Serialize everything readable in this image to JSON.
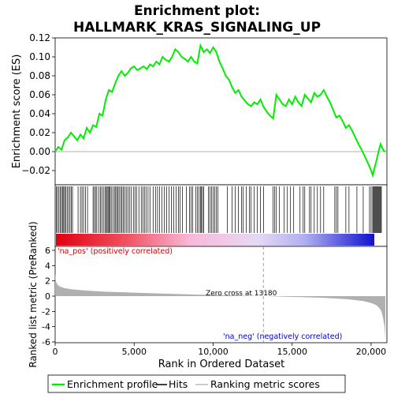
{
  "chart_data": {
    "type": "line",
    "title_line1": "Enrichment plot:",
    "title_line2": "HALLMARK_KRAS_SIGNALING_UP",
    "es_panel": {
      "ylabel": "Enrichment score (ES)",
      "ylim": [
        -0.035,
        0.12
      ],
      "yticks": [
        -0.02,
        0.0,
        0.02,
        0.04,
        0.06,
        0.08,
        0.1,
        0.12
      ],
      "ytick_labels": [
        "−0.02",
        "0.00",
        "0.02",
        "0.04",
        "0.06",
        "0.08",
        "0.10",
        "0.12"
      ],
      "series_name": "Enrichment profile",
      "color": "#00ee00",
      "x": [
        0,
        200,
        400,
        600,
        800,
        1000,
        1200,
        1400,
        1600,
        1800,
        2000,
        2200,
        2400,
        2600,
        2800,
        3000,
        3200,
        3400,
        3600,
        3800,
        4000,
        4200,
        4400,
        4600,
        4800,
        5000,
        5200,
        5400,
        5600,
        5800,
        6000,
        6200,
        6400,
        6600,
        6800,
        7000,
        7200,
        7400,
        7600,
        7800,
        8000,
        8200,
        8400,
        8600,
        8800,
        9000,
        9200,
        9400,
        9600,
        9800,
        10000,
        10200,
        10400,
        10600,
        10800,
        11000,
        11200,
        11400,
        11600,
        11800,
        12000,
        12200,
        12400,
        12600,
        12800,
        13000,
        13200,
        13400,
        13600,
        13800,
        14000,
        14200,
        14400,
        14600,
        14800,
        15000,
        15200,
        15400,
        15600,
        15800,
        16000,
        16200,
        16400,
        16600,
        16800,
        17000,
        17200,
        17400,
        17600,
        17800,
        18000,
        18200,
        18400,
        18600,
        18800,
        19000,
        19200,
        19400,
        19600,
        19800,
        20000,
        20100,
        20200,
        20300,
        20400,
        20500,
        20600,
        20700,
        20800,
        20900
      ],
      "y": [
        0.0,
        0.005,
        0.002,
        0.012,
        0.015,
        0.02,
        0.016,
        0.012,
        0.018,
        0.014,
        0.025,
        0.02,
        0.028,
        0.026,
        0.04,
        0.038,
        0.055,
        0.065,
        0.063,
        0.072,
        0.08,
        0.085,
        0.08,
        0.083,
        0.088,
        0.09,
        0.086,
        0.088,
        0.09,
        0.087,
        0.092,
        0.09,
        0.095,
        0.092,
        0.1,
        0.097,
        0.095,
        0.1,
        0.108,
        0.105,
        0.1,
        0.098,
        0.095,
        0.1,
        0.095,
        0.093,
        0.112,
        0.105,
        0.108,
        0.104,
        0.11,
        0.105,
        0.095,
        0.088,
        0.08,
        0.076,
        0.068,
        0.062,
        0.065,
        0.058,
        0.054,
        0.05,
        0.048,
        0.052,
        0.05,
        0.055,
        0.047,
        0.042,
        0.038,
        0.035,
        0.06,
        0.055,
        0.05,
        0.048,
        0.055,
        0.05,
        0.058,
        0.052,
        0.048,
        0.06,
        0.056,
        0.052,
        0.062,
        0.058,
        0.06,
        0.065,
        0.058,
        0.052,
        0.044,
        0.036,
        0.038,
        0.032,
        0.025,
        0.028,
        0.022,
        0.015,
        0.008,
        0.002,
        -0.005,
        -0.012,
        -0.02,
        -0.025,
        -0.018,
        -0.012,
        -0.005,
        0.002,
        0.008,
        0.004,
        0.001,
        0.0
      ],
      "baseline": 0.0
    },
    "hits_panel": {
      "legend_label": "Hits",
      "positions": [
        80,
        150,
        240,
        320,
        400,
        470,
        540,
        600,
        680,
        760,
        850,
        940,
        1020,
        1100,
        1450,
        1600,
        1700,
        1800,
        1920,
        2050,
        2400,
        2480,
        2560,
        2640,
        2760,
        2870,
        2950,
        3050,
        3150,
        3230,
        3290,
        3350,
        3410,
        3480,
        3550,
        3650,
        3750,
        3830,
        3900,
        3980,
        4050,
        4150,
        4230,
        4320,
        4400,
        4500,
        4600,
        4700,
        4820,
        4950,
        5050,
        5150,
        5300,
        5450,
        5550,
        5650,
        5750,
        5880,
        6000,
        6200,
        6350,
        6480,
        6600,
        6750,
        6900,
        7050,
        7200,
        7350,
        7500,
        7650,
        7800,
        7900,
        8050,
        8300,
        8500,
        8600,
        8700,
        8900,
        9000,
        9100,
        9200,
        9260,
        9330,
        9400,
        9700,
        9800,
        9900,
        10000,
        10100,
        10200,
        10300,
        10900,
        11200,
        11400,
        11600,
        11800,
        11900,
        12100,
        12300,
        12400,
        12600,
        12800,
        13000,
        13200,
        13800,
        13900,
        14000,
        14200,
        14500,
        14700,
        14900,
        15100,
        15500,
        15700,
        15800,
        16100,
        16200,
        16400,
        16600,
        16800,
        17000,
        17700,
        17800,
        17900,
        18400,
        18600,
        19100,
        19500,
        19900,
        20000,
        20100,
        20150,
        20200,
        20250,
        20300,
        20350,
        20400,
        20450,
        20500,
        20550,
        20600,
        20650
      ]
    },
    "rank_panel": {
      "xlabel": "Rank in Ordered Dataset",
      "ylabel": "Ranked list metric (PreRanked)",
      "legend_label": "Ranking metric scores",
      "ylim": [
        -6,
        6
      ],
      "yticks": [
        -6,
        -4,
        -2,
        0,
        2,
        4,
        6
      ],
      "ytick_labels": [
        "-6",
        "-4",
        "-2",
        "0",
        "2",
        "4",
        "6"
      ],
      "xlim": [
        0,
        21000
      ],
      "xticks": [
        0,
        5000,
        10000,
        15000,
        20000
      ],
      "xtick_labels": [
        "0",
        "5,000",
        "10,000",
        "15,000",
        "20,000"
      ],
      "zero_cross": 13180,
      "zero_cross_label": "Zero cross at 13180",
      "pos_label": "'na_pos' (positively correlated)",
      "neg_label": "'na_neg' (negatively correlated)",
      "metric_x": [
        0,
        50,
        150,
        300,
        600,
        1000,
        2000,
        3000,
        5000,
        7000,
        9000,
        11000,
        13180,
        15000,
        17000,
        18500,
        19500,
        20000,
        20300,
        20500,
        20650,
        20750,
        20850,
        20900
      ],
      "metric_y": [
        3.0,
        1.9,
        1.5,
        1.25,
        1.05,
        0.9,
        0.72,
        0.6,
        0.45,
        0.32,
        0.2,
        0.1,
        0.0,
        -0.1,
        -0.22,
        -0.4,
        -0.65,
        -0.9,
        -1.15,
        -1.5,
        -2.0,
        -2.8,
        -4.0,
        -5.5
      ]
    },
    "colors": {
      "es_line": "#00ee00",
      "hit": "#000000",
      "metric_fill": "#b0b0b0",
      "pos_label": "#cc0000",
      "neg_label": "#0000cc"
    }
  }
}
